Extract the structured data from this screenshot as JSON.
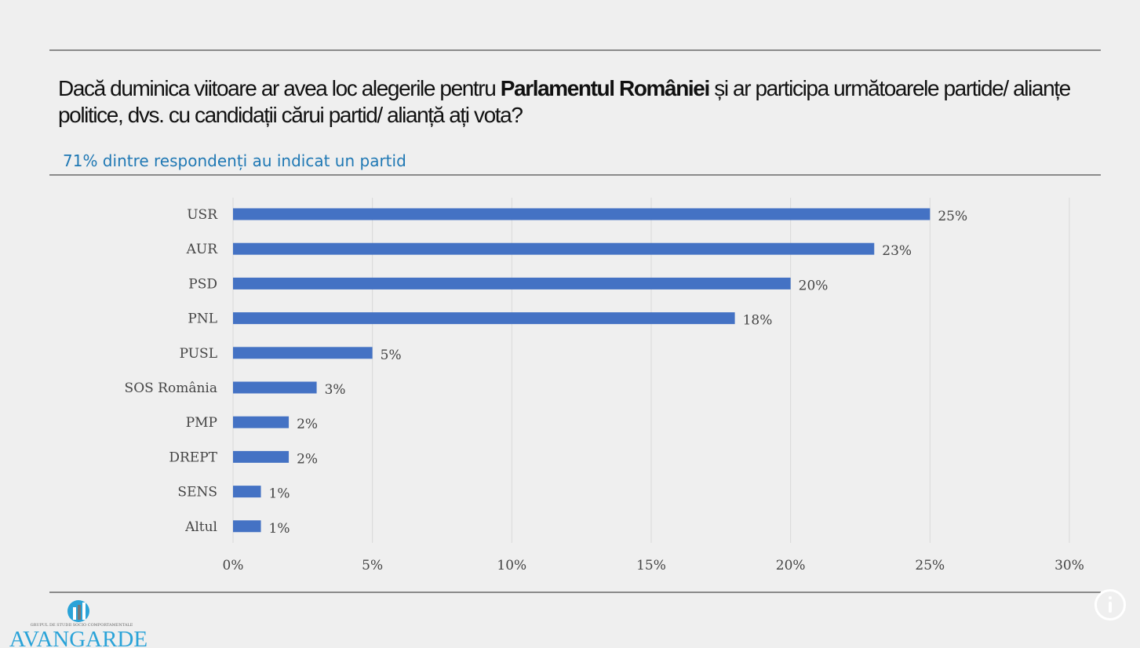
{
  "header": {
    "title_pre": "Dacă duminica viitoare ar avea loc alegerile pentru ",
    "title_bold": "Parlamentul României",
    "title_post": " și ar participa următoarele partide/ alianțe politice, dvs. cu candidații cărui partid/ alianță ați vota?",
    "subtitle": "71% dintre respondenți au indicat un partid"
  },
  "logo": {
    "tagline": "GRUPUL DE STUDII SOCIO COMPORTAMENTALE",
    "name": "AVANGARDE"
  },
  "colors": {
    "bar": "#4472c4",
    "accent": "#1f78b4",
    "logo": "#2aa3d8"
  },
  "chart_data": {
    "type": "bar",
    "orientation": "horizontal",
    "categories": [
      "USR",
      "AUR",
      "PSD",
      "PNL",
      "PUSL",
      "SOS România",
      "PMP",
      "DREPT",
      "SENS",
      "Altul"
    ],
    "values": [
      25,
      23,
      20,
      18,
      5,
      3,
      2,
      2,
      1,
      1
    ],
    "value_labels": [
      "25%",
      "23%",
      "20%",
      "18%",
      "5%",
      "3%",
      "2%",
      "2%",
      "1%",
      "1%"
    ],
    "xlim": [
      0,
      30
    ],
    "xticks": [
      0,
      5,
      10,
      15,
      20,
      25,
      30
    ],
    "xtick_labels": [
      "0%",
      "5%",
      "10%",
      "15%",
      "20%",
      "25%",
      "30%"
    ],
    "grid": true,
    "title": "",
    "xlabel": "",
    "ylabel": ""
  }
}
